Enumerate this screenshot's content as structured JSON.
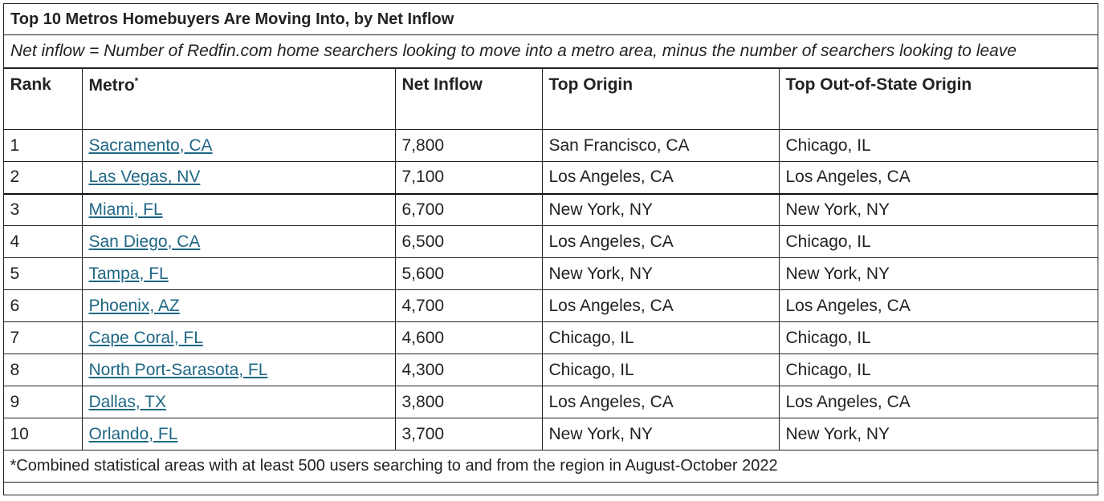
{
  "title": "Top 10 Metros Homebuyers Are Moving Into, by Net Inflow",
  "subtitle": "Net inflow = Number of Redfin.com home searchers looking to move into a metro area, minus the number of searchers looking to leave",
  "columns": {
    "rank": "Rank",
    "metro": "Metro",
    "metro_marker": "*",
    "net_inflow": "Net Inflow",
    "top_origin": "Top Origin",
    "top_out_of_state": "Top Out-of-State Origin"
  },
  "rows": [
    {
      "rank": "1",
      "metro": "Sacramento, CA",
      "net": "7,800",
      "origin": "San Francisco, CA",
      "oos": "Chicago, IL"
    },
    {
      "rank": "2",
      "metro": "Las Vegas, NV",
      "net": "7,100",
      "origin": "Los Angeles, CA",
      "oos": "Los Angeles, CA"
    },
    {
      "rank": "3",
      "metro": "Miami, FL",
      "net": "6,700",
      "origin": "New York, NY",
      "oos": "New York, NY"
    },
    {
      "rank": "4",
      "metro": "San Diego, CA",
      "net": "6,500",
      "origin": "Los Angeles, CA",
      "oos": "Chicago, IL"
    },
    {
      "rank": "5",
      "metro": "Tampa, FL",
      "net": "5,600",
      "origin": "New York, NY",
      "oos": "New York, NY"
    },
    {
      "rank": "6",
      "metro": "Phoenix, AZ",
      "net": "4,700",
      "origin": "Los Angeles, CA",
      "oos": "Los Angeles, CA"
    },
    {
      "rank": "7",
      "metro": "Cape Coral, FL",
      "net": "4,600",
      "origin": "Chicago, IL",
      "oos": "Chicago, IL"
    },
    {
      "rank": "8",
      "metro": "North Port-Sarasota, FL",
      "net": "4,300",
      "origin": "Chicago, IL",
      "oos": "Chicago, IL"
    },
    {
      "rank": "9",
      "metro": "Dallas, TX",
      "net": "3,800",
      "origin": "Los Angeles, CA",
      "oos": "Los Angeles, CA"
    },
    {
      "rank": "10",
      "metro": "Orlando, FL",
      "net": "3,700",
      "origin": "New York, NY",
      "oos": "New York, NY"
    }
  ],
  "footnote": "*Combined statistical areas with at least 500 users searching to and from the region in August-October 2022",
  "colors": {
    "link": "#1e6784",
    "border": "#222222",
    "text": "#222222"
  }
}
